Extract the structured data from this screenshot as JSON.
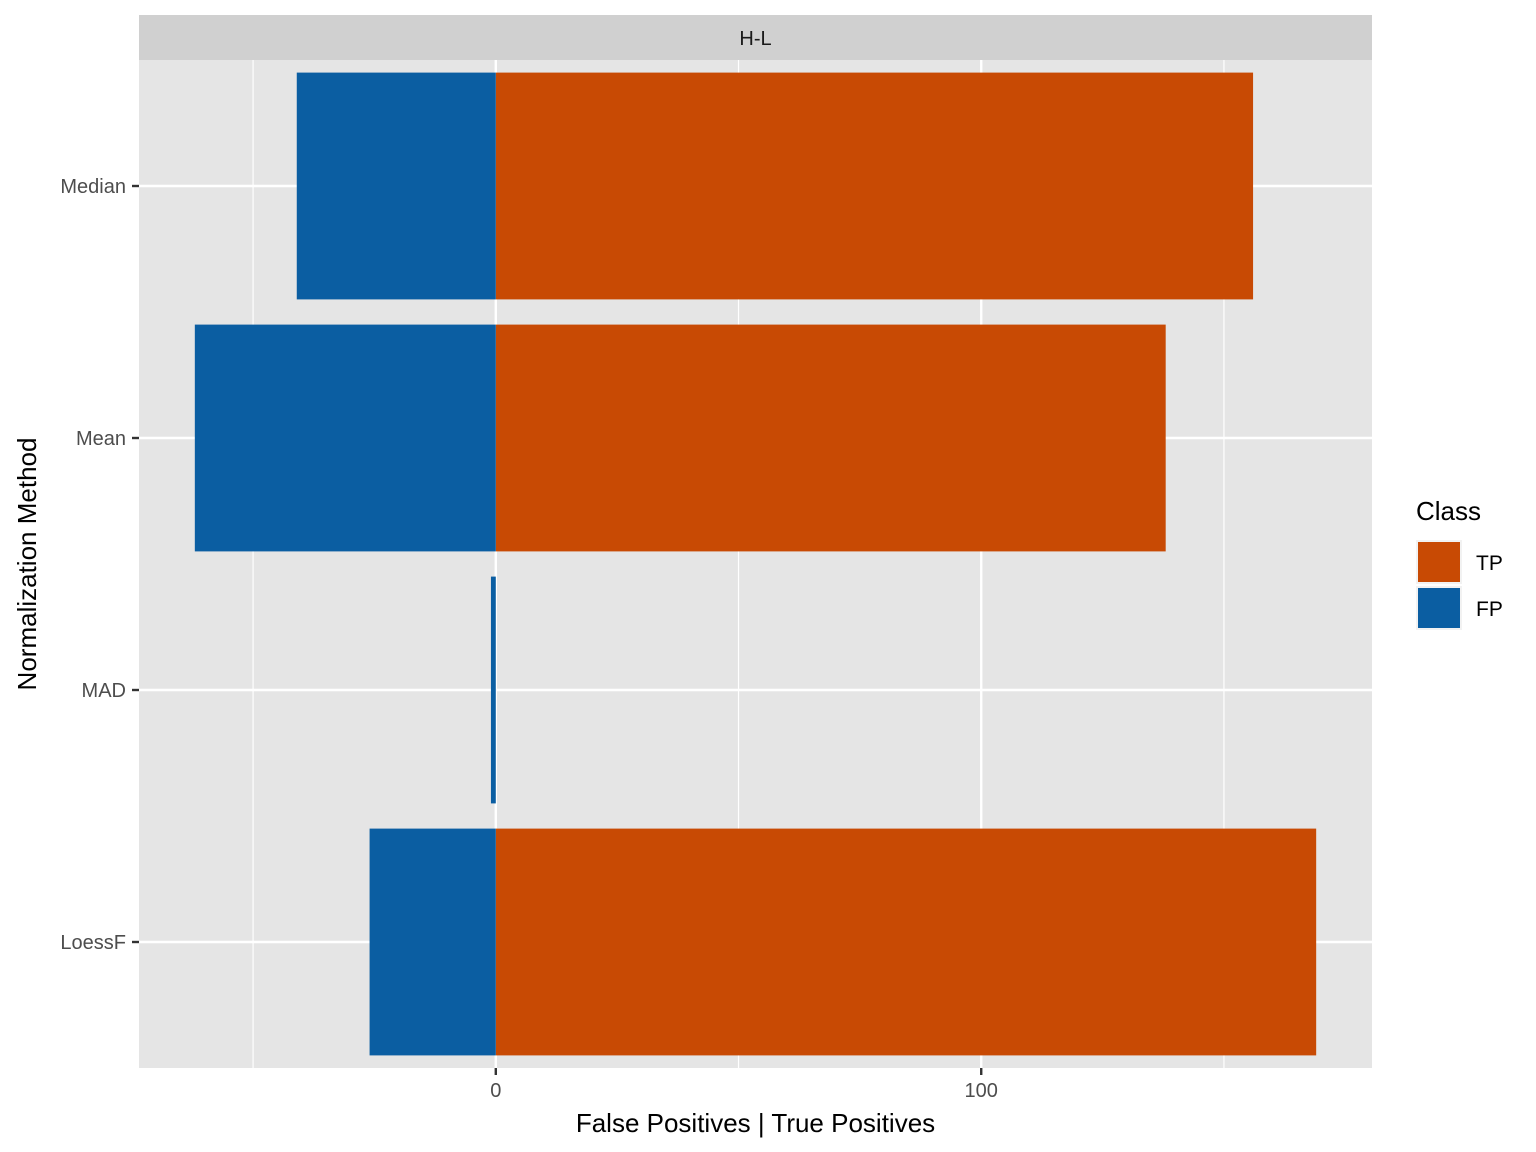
{
  "chart_data": {
    "type": "bar",
    "orientation": "horizontal",
    "facet_label": "H-L",
    "xlabel": "False Positives | True Positives",
    "ylabel": "Normalization Method",
    "categories": [
      "Median",
      "Mean",
      "MAD",
      "LoessF"
    ],
    "series": [
      {
        "name": "TP",
        "color": "#c84a04",
        "values": [
          156,
          138,
          0,
          169
        ]
      },
      {
        "name": "FP",
        "color": "#0b5ea2",
        "values": [
          -41,
          -62,
          -1,
          -26
        ]
      }
    ],
    "x_ticks": [
      0,
      100
    ],
    "x_tick_labels": [
      "0",
      "100"
    ],
    "xlim": [
      -73.5,
      180.5
    ],
    "grid": true,
    "legend": {
      "title": "Class",
      "position": "right",
      "entries": [
        "TP",
        "FP"
      ]
    },
    "colors": {
      "panel_background": "#e5e5e5",
      "strip_background": "#d0d0d0",
      "grid": "#ffffff"
    }
  }
}
